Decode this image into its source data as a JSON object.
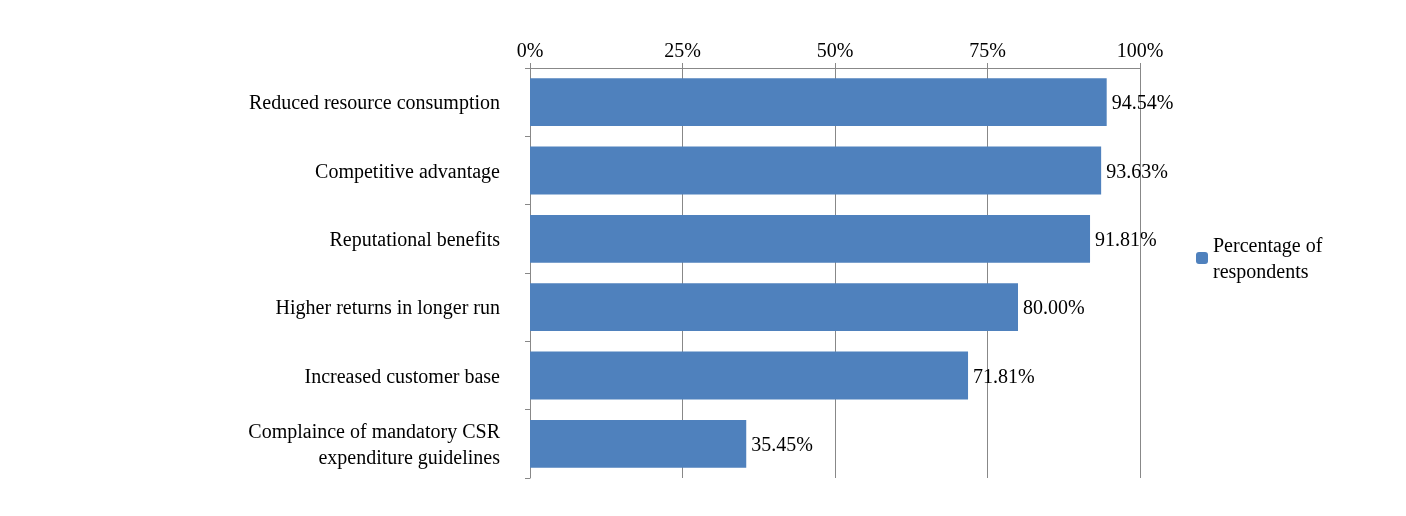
{
  "chart_data": {
    "type": "bar",
    "orientation": "horizontal",
    "categories": [
      "Reduced resource consumption",
      "Competitive advantage",
      "Reputational benefits",
      "Higher returns in longer run",
      "Increased customer base",
      "Complaince of mandatory CSR\nexpenditure guidelines"
    ],
    "series": [
      {
        "name": "Percentage of respondents",
        "color": "#4f81bd",
        "values": [
          94.54,
          93.63,
          91.81,
          80.0,
          71.81,
          35.45
        ],
        "value_labels": [
          "94.54%",
          "93.63%",
          "91.81%",
          "80.00%",
          "71.81%",
          "35.45%"
        ]
      }
    ],
    "xlim": [
      0,
      100
    ],
    "xticks": [
      {
        "value": 0,
        "label": "0%"
      },
      {
        "value": 25,
        "label": "25%"
      },
      {
        "value": 50,
        "label": "50%"
      },
      {
        "value": 75,
        "label": "75%"
      },
      {
        "value": 100,
        "label": "100%"
      }
    ],
    "grid": "x",
    "legend": "right"
  }
}
